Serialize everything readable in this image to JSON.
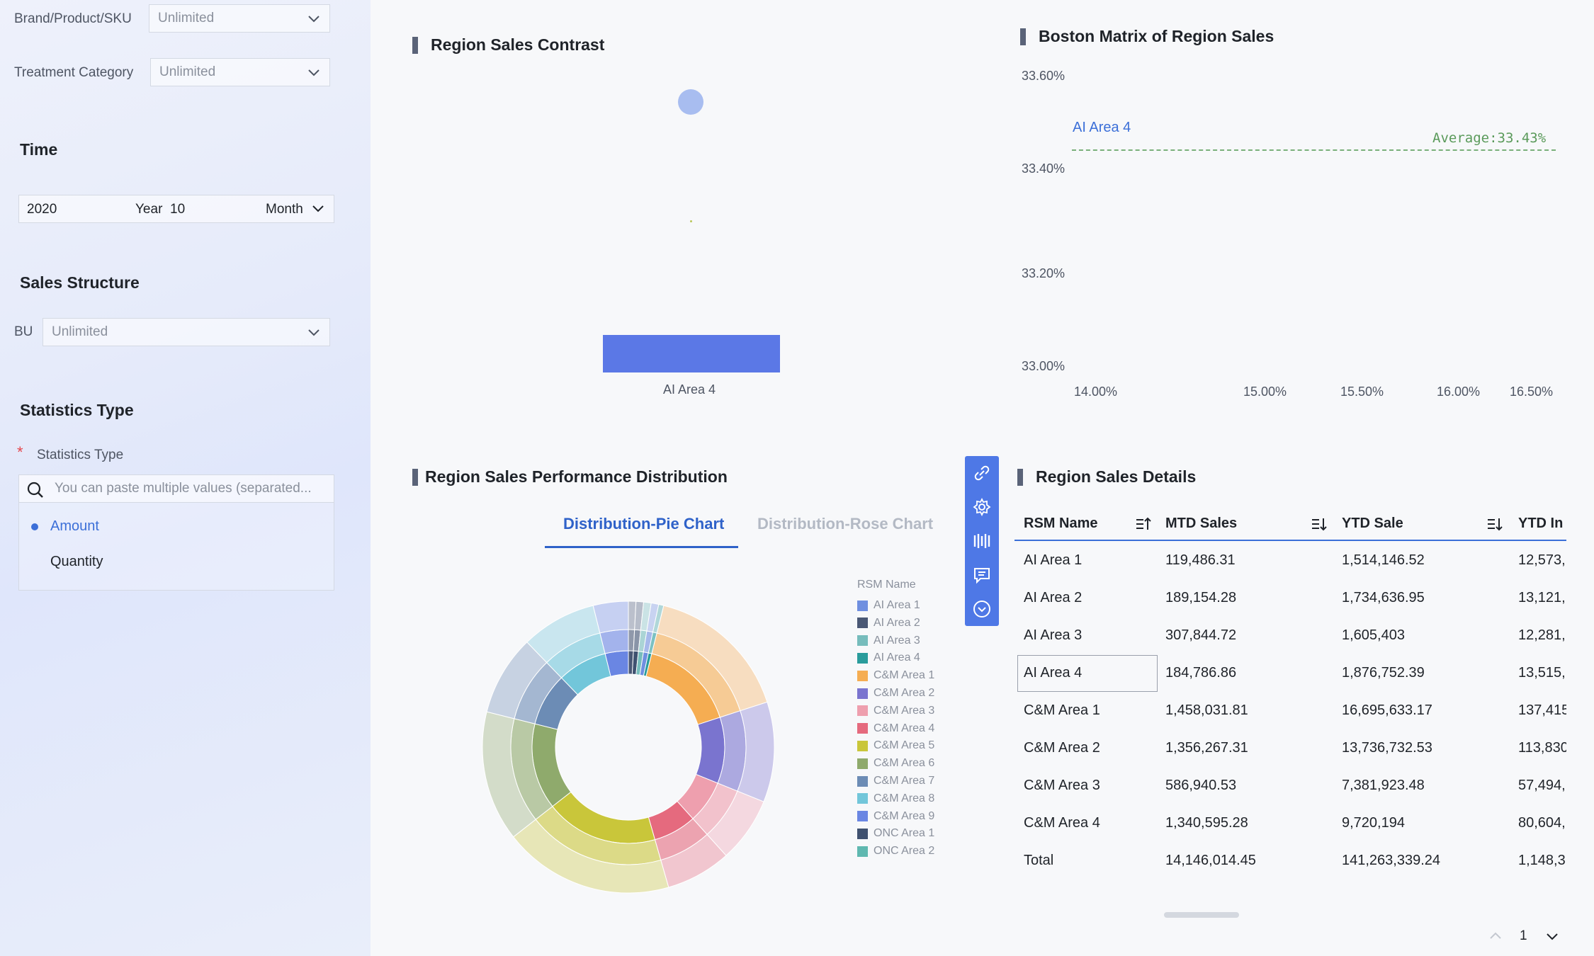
{
  "sidebar": {
    "brand_label": "Brand/Product/SKU",
    "brand_value": "Unlimited",
    "treatment_label": "Treatment Category",
    "treatment_value": "Unlimited",
    "time_title": "Time",
    "time_year": "2020",
    "time_year_unit": "Year",
    "time_month": "10",
    "time_month_unit": "Month",
    "sales_structure_title": "Sales Structure",
    "bu_label": "BU",
    "bu_value": "Unlimited",
    "statistics_title": "Statistics Type",
    "statistics_required": "*",
    "statistics_label": "Statistics Type",
    "search_placeholder": "You can paste multiple values (separated...",
    "options": [
      "Amount",
      "Quantity"
    ]
  },
  "contrast": {
    "title": "Region Sales Contrast",
    "bar_label": "AI Area 4",
    "colors": {
      "bar": "#5b78e6",
      "dot": "#a8bdf0"
    }
  },
  "boston": {
    "title": "Boston Matrix of Region Sales",
    "y_ticks": [
      "33.60%",
      "33.40%",
      "33.20%",
      "33.00%"
    ],
    "x_ticks": [
      "14.00%",
      "15.00%",
      "15.50%",
      "16.00%",
      "16.50%"
    ],
    "point_label": "AI Area 4",
    "average_label": "Average:33.43%"
  },
  "distribution": {
    "title": "Region Sales Performance Distribution",
    "tab_pie": "Distribution-Pie Chart",
    "tab_rose": "Distribution-Rose Chart",
    "legend_title": "RSM Name",
    "legend": [
      {
        "name": "AI Area 1",
        "color": "#6f8fe0"
      },
      {
        "name": "AI Area 2",
        "color": "#4a5875"
      },
      {
        "name": "AI Area 3",
        "color": "#76bcbc"
      },
      {
        "name": "AI Area 4",
        "color": "#2a9c9c"
      },
      {
        "name": "C&M Area 1",
        "color": "#f5ad52"
      },
      {
        "name": "C&M Area 2",
        "color": "#7a74cf"
      },
      {
        "name": "C&M Area 3",
        "color": "#ee9fae"
      },
      {
        "name": "C&M Area 4",
        "color": "#e56a7e"
      },
      {
        "name": "C&M Area 5",
        "color": "#c9c63a"
      },
      {
        "name": "C&M Area 6",
        "color": "#8faa6c"
      },
      {
        "name": "C&M Area 7",
        "color": "#6c8cb5"
      },
      {
        "name": "C&M Area 8",
        "color": "#72c6da"
      },
      {
        "name": "C&M Area 9",
        "color": "#6a86e3"
      },
      {
        "name": "ONC Area 1",
        "color": "#3f5170"
      },
      {
        "name": "ONC Area 2",
        "color": "#5fb8b0"
      }
    ]
  },
  "details": {
    "title": "Region Sales Details",
    "headers": [
      "RSM Name",
      "MTD Sales",
      "YTD Sale",
      "YTD In"
    ],
    "rows": [
      [
        "AI Area 1",
        "119,486.31",
        "1,514,146.52",
        "12,573,"
      ],
      [
        "AI Area 2",
        "189,154.28",
        "1,734,636.95",
        "13,121,"
      ],
      [
        "AI Area 3",
        "307,844.72",
        "1,605,403",
        "12,281,"
      ],
      [
        "AI Area 4",
        "184,786.86",
        "1,876,752.39",
        "13,515,"
      ],
      [
        "C&M Area 1",
        "1,458,031.81",
        "16,695,633.17",
        "137,415"
      ],
      [
        "C&M Area 2",
        "1,356,267.31",
        "13,736,732.53",
        "113,830"
      ],
      [
        "C&M Area 3",
        "586,940.53",
        "7,381,923.48",
        "57,494,"
      ],
      [
        "C&M Area 4",
        "1,340,595.28",
        "9,720,194",
        "80,604,"
      ],
      [
        "Total",
        "14,146,014.45",
        "141,263,339.24",
        "1,148,3"
      ]
    ],
    "page": "1"
  }
}
